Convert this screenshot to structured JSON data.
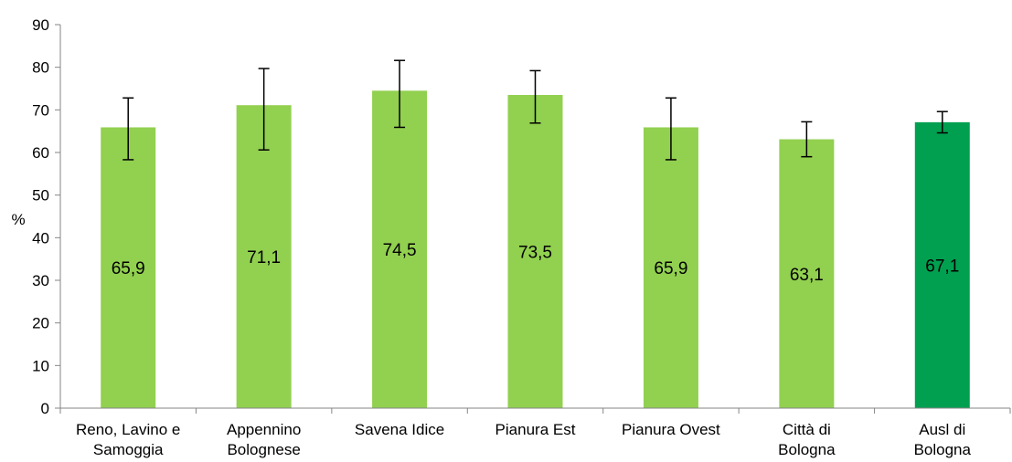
{
  "chart_data": {
    "type": "bar",
    "title": "",
    "xlabel": "",
    "ylabel": "%",
    "ylim": [
      0,
      90
    ],
    "yticks": [
      0,
      10,
      20,
      30,
      40,
      50,
      60,
      70,
      80,
      90
    ],
    "grid": false,
    "legend": "none",
    "categories": [
      [
        "Reno, Lavino e",
        "Samoggia"
      ],
      [
        "Appennino",
        "Bolognese"
      ],
      [
        "Savena Idice"
      ],
      [
        "Pianura Est"
      ],
      [
        "Pianura Ovest"
      ],
      [
        "Città di",
        "Bologna"
      ],
      [
        "Ausl di",
        "Bologna"
      ]
    ],
    "values": [
      65.9,
      71.1,
      74.5,
      73.5,
      65.9,
      63.1,
      67.1
    ],
    "value_labels": [
      "65,9",
      "71,1",
      "74,5",
      "73,5",
      "65,9",
      "63,1",
      "67,1"
    ],
    "error_low": [
      58.3,
      60.6,
      65.9,
      66.9,
      58.3,
      59.0,
      64.6
    ],
    "error_high": [
      72.8,
      79.7,
      81.6,
      79.2,
      72.8,
      67.2,
      69.6
    ],
    "colors": [
      "#92d050",
      "#92d050",
      "#92d050",
      "#92d050",
      "#92d050",
      "#92d050",
      "#00a050"
    ]
  }
}
